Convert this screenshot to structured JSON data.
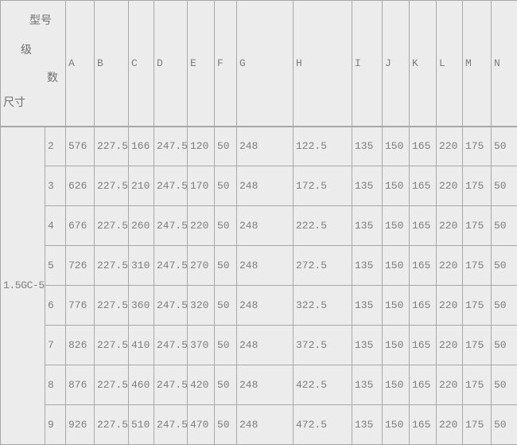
{
  "table": {
    "corner": {
      "model_label": "型号",
      "stage_char_1": "级",
      "stage_char_2": "数",
      "dimensions_label": "尺寸"
    },
    "columns": [
      "A",
      "B",
      "C",
      "D",
      "E",
      "F",
      "G",
      "H",
      "I",
      "J",
      "K",
      "L",
      "M",
      "N"
    ],
    "model": "1.5GC-5",
    "rows": [
      {
        "stage": "2",
        "values": [
          "576",
          "227.5",
          "166",
          "247.5",
          "120",
          "50",
          "248",
          "122.5",
          "135",
          "150",
          "165",
          "220",
          "175",
          "50"
        ]
      },
      {
        "stage": "3",
        "values": [
          "626",
          "227.5",
          "210",
          "247.5",
          "170",
          "50",
          "248",
          "172.5",
          "135",
          "150",
          "165",
          "220",
          "175",
          "50"
        ]
      },
      {
        "stage": "4",
        "values": [
          "676",
          "227.5",
          "260",
          "247.5",
          "220",
          "50",
          "248",
          "222.5",
          "135",
          "150",
          "165",
          "220",
          "175",
          "50"
        ]
      },
      {
        "stage": "5",
        "values": [
          "726",
          "227.5",
          "310",
          "247.5",
          "270",
          "50",
          "248",
          "272.5",
          "135",
          "150",
          "165",
          "220",
          "175",
          "50"
        ]
      },
      {
        "stage": "6",
        "values": [
          "776",
          "227.5",
          "360",
          "247.5",
          "320",
          "50",
          "248",
          "322.5",
          "135",
          "150",
          "165",
          "220",
          "175",
          "50"
        ]
      },
      {
        "stage": "7",
        "values": [
          "826",
          "227.5",
          "410",
          "247.5",
          "370",
          "50",
          "248",
          "372.5",
          "135",
          "150",
          "165",
          "220",
          "175",
          "50"
        ]
      },
      {
        "stage": "8",
        "values": [
          "876",
          "227.5",
          "460",
          "247.5",
          "420",
          "50",
          "248",
          "422.5",
          "135",
          "150",
          "165",
          "220",
          "175",
          "50"
        ]
      },
      {
        "stage": "9",
        "values": [
          "926",
          "227.5",
          "510",
          "247.5",
          "470",
          "50",
          "248",
          "472.5",
          "135",
          "150",
          "165",
          "220",
          "175",
          "50"
        ]
      }
    ],
    "colors": {
      "background": "#ececec",
      "border": "#a8a8a8",
      "text": "#7e7e7e"
    }
  }
}
